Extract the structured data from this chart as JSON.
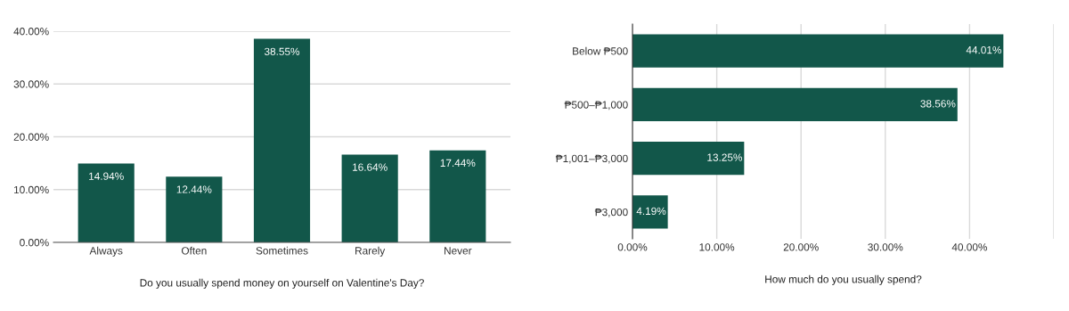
{
  "chart_data": [
    {
      "type": "bar",
      "xlabel": "Do you usually spend money on yourself on Valentine's Day?",
      "categories": [
        "Always",
        "Often",
        "Sometimes",
        "Rarely",
        "Never"
      ],
      "values": [
        14.94,
        12.44,
        38.55,
        16.64,
        17.44
      ],
      "value_labels": [
        "14.94%",
        "12.44%",
        "38.55%",
        "16.64%",
        "17.44%"
      ],
      "color": "#12574a",
      "ylim": [
        0,
        40
      ],
      "yticks": [
        {
          "value": 0,
          "label": "0.00%"
        },
        {
          "value": 10,
          "label": "10.00%"
        },
        {
          "value": 20,
          "label": "20.00%"
        },
        {
          "value": 30,
          "label": "30.00%"
        },
        {
          "value": 40,
          "label": "40.00%"
        }
      ],
      "grid": "y"
    },
    {
      "type": "bar",
      "orientation": "horizontal",
      "xlabel": "How much do you usually spend?",
      "categories": [
        "Below ₱500",
        "₱500–₱1,000",
        "₱1,001–₱3,000",
        "₱3,000"
      ],
      "values": [
        44.01,
        38.56,
        13.25,
        4.19
      ],
      "value_labels": [
        "44.01%",
        "38.56%",
        "13.25%",
        "4.19%"
      ],
      "color": "#12574a",
      "xlim": [
        0,
        50
      ],
      "xticks": [
        {
          "value": 0,
          "label": "0.00%"
        },
        {
          "value": 10,
          "label": "10.00%"
        },
        {
          "value": 20,
          "label": "20.00%"
        },
        {
          "value": 30,
          "label": "30.00%"
        },
        {
          "value": 40,
          "label": "40.00%"
        },
        {
          "value": 50,
          "label": null
        }
      ],
      "grid": "x"
    }
  ]
}
